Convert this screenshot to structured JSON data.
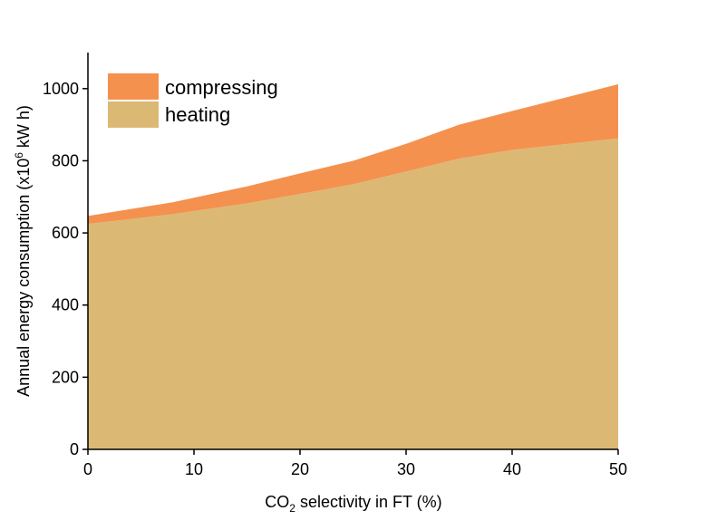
{
  "chart_data": {
    "type": "area",
    "stacked": true,
    "x": [
      0,
      8,
      15,
      20,
      25,
      30,
      35,
      40,
      50
    ],
    "series": [
      {
        "name": "heating",
        "color": "#dbb975",
        "values": [
          625,
          652,
          682,
          708,
          735,
          770,
          806,
          830,
          862
        ]
      },
      {
        "name": "compressing",
        "color": "#f5914e",
        "values": [
          22,
          33,
          47,
          57,
          65,
          77,
          94,
          108,
          150
        ]
      }
    ],
    "xlim": [
      0,
      50
    ],
    "ylim": [
      0,
      1100
    ],
    "xticks": [
      0,
      10,
      20,
      30,
      40,
      50
    ],
    "yticks": [
      0,
      200,
      400,
      600,
      800,
      1000
    ],
    "xlabel": {
      "prefix": "CO",
      "sub": "2",
      "suffix": " selectivity in FT (%)"
    },
    "ylabel": {
      "prefix": "Annual energy consumption (x10",
      "sup": "6",
      "suffix": " kW h)"
    },
    "legend_position": "top-left",
    "grid": false
  }
}
